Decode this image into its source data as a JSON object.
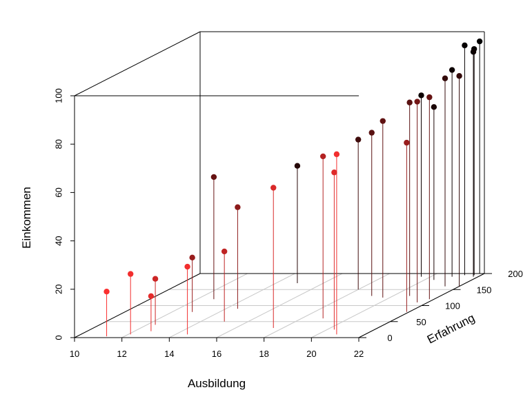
{
  "chart_data": {
    "type": "scatter",
    "variant": "3d-scatter-with-drop-lines",
    "xlabel": "Ausbildung",
    "ylabel": "Erfahrung",
    "zlabel": "Einkommen",
    "xlim": [
      10,
      22
    ],
    "ylim": [
      0,
      200
    ],
    "zlim": [
      0,
      100
    ],
    "x_ticks": [
      10,
      12,
      14,
      16,
      18,
      20,
      22
    ],
    "y_ticks": [
      0,
      50,
      100,
      150,
      200
    ],
    "z_ticks": [
      0,
      20,
      40,
      60,
      80,
      100
    ],
    "grid": true,
    "color_scale": {
      "low": "#ff3030",
      "high": "#000000",
      "variable": "Erfahrung"
    },
    "points": [
      {
        "x": 11.25,
        "y": 4,
        "z": 18.5
      },
      {
        "x": 12.1,
        "y": 10,
        "z": 25
      },
      {
        "x": 12.35,
        "y": 40,
        "z": 19
      },
      {
        "x": 12.7,
        "y": 20,
        "z": 14.5
      },
      {
        "x": 12.7,
        "y": 120,
        "z": 50.5
      },
      {
        "x": 12.85,
        "y": 80,
        "z": 22.5
      },
      {
        "x": 14.5,
        "y": 10,
        "z": 28
      },
      {
        "x": 14.5,
        "y": 90,
        "z": 42
      },
      {
        "x": 14.9,
        "y": 170,
        "z": 48.5
      },
      {
        "x": 15.0,
        "y": 50,
        "z": 29
      },
      {
        "x": 17.6,
        "y": 30,
        "z": 58
      },
      {
        "x": 18.0,
        "y": 150,
        "z": 62
      },
      {
        "x": 18.9,
        "y": 60,
        "z": 67
      },
      {
        "x": 19.1,
        "y": 130,
        "z": 67.5
      },
      {
        "x": 19.6,
        "y": 190,
        "z": 75
      },
      {
        "x": 19.7,
        "y": 125,
        "z": 73
      },
      {
        "x": 20.3,
        "y": 25,
        "z": 65
      },
      {
        "x": 20.4,
        "y": 180,
        "z": 71.5
      },
      {
        "x": 20.7,
        "y": 130,
        "z": 80
      },
      {
        "x": 20.8,
        "y": 10,
        "z": 74.5
      },
      {
        "x": 20.9,
        "y": 190,
        "z": 85.5
      },
      {
        "x": 21.4,
        "y": 160,
        "z": 86
      },
      {
        "x": 21.55,
        "y": 110,
        "z": 83
      },
      {
        "x": 21.8,
        "y": 190,
        "z": 93
      },
      {
        "x": 21.8,
        "y": 120,
        "z": 83.5
      },
      {
        "x": 21.9,
        "y": 80,
        "z": 70
      },
      {
        "x": 22.0,
        "y": 160,
        "z": 87
      },
      {
        "x": 21.8,
        "y": 200,
        "z": 96
      },
      {
        "x": 21.3,
        "y": 195,
        "z": 95
      },
      {
        "x": 21.7,
        "y": 195,
        "z": 93.5
      }
    ]
  }
}
